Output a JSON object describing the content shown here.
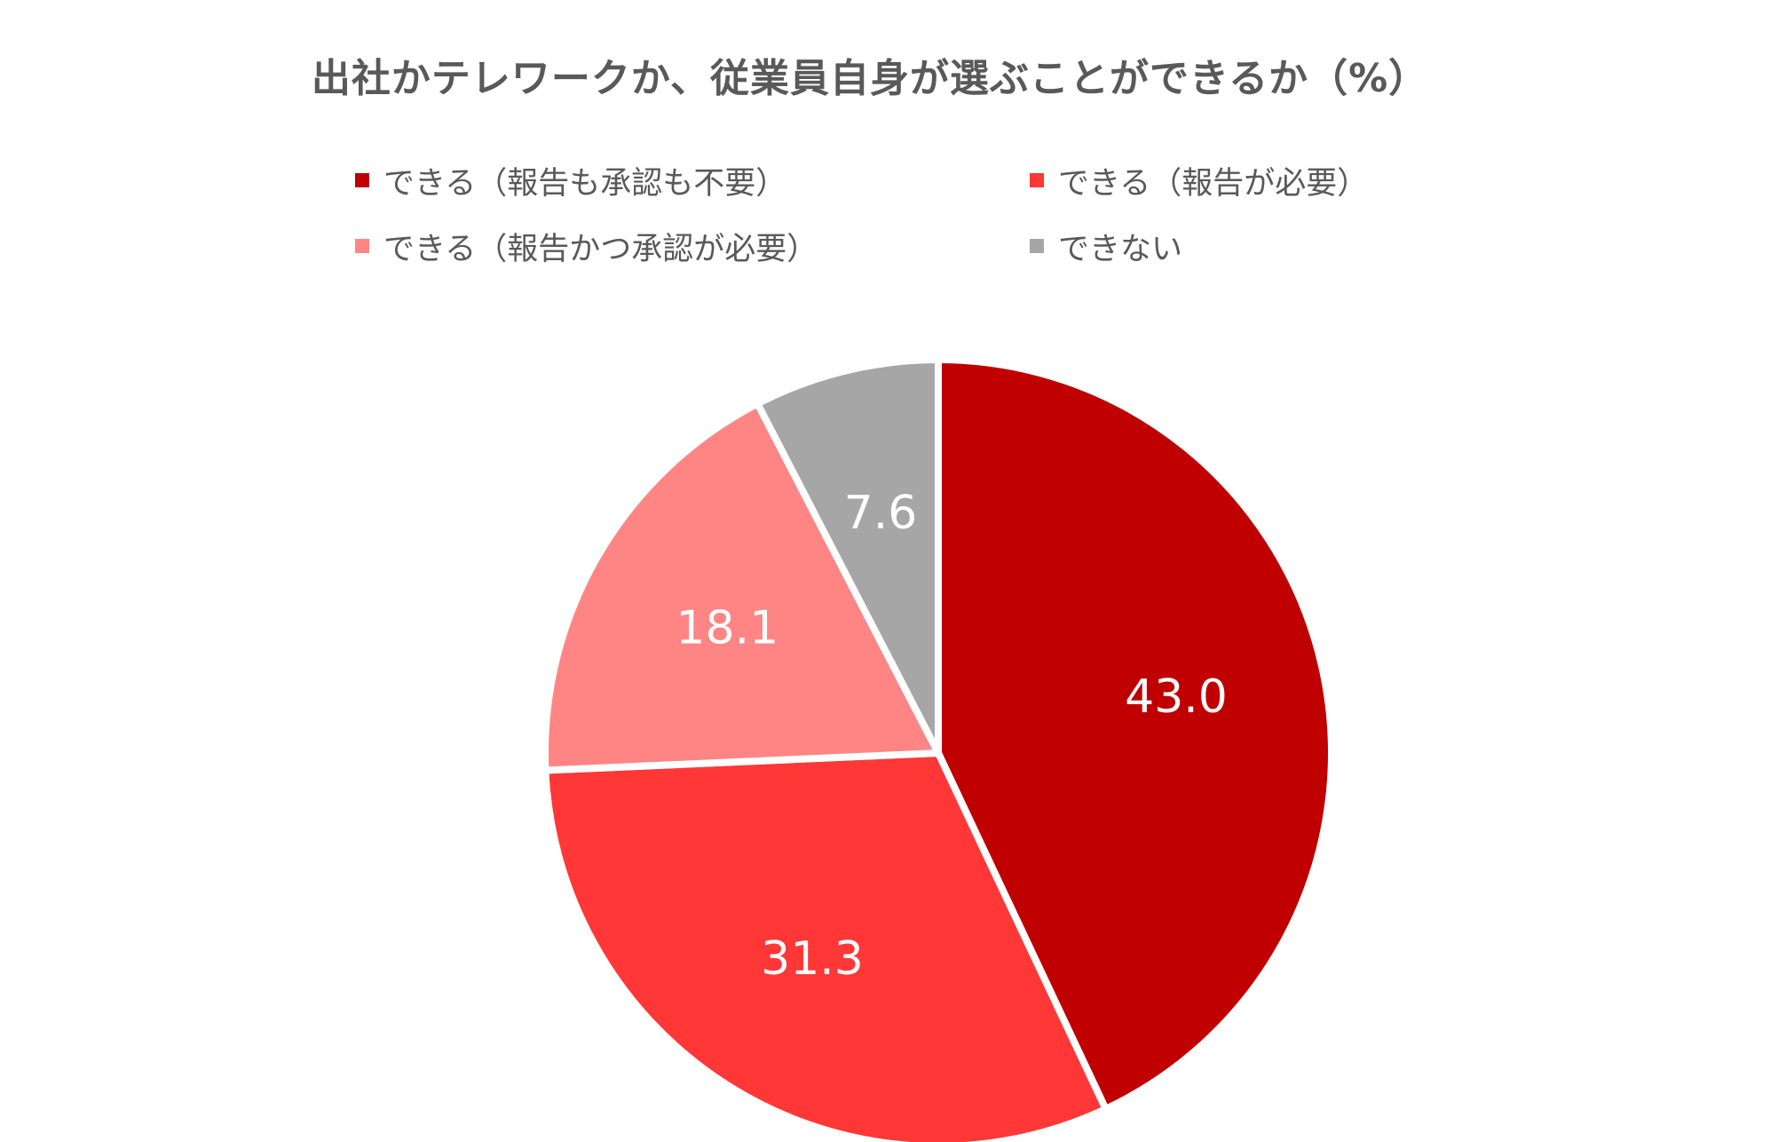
{
  "chart_data": {
    "type": "pie",
    "title": "出社かテレワークか、従業員自身が選ぶことができるか（%）",
    "start_angle_deg": 0,
    "direction": "clockwise",
    "legend_placement": "top",
    "slices": [
      {
        "label": "できる（報告も承認も不要）",
        "value": 43.0,
        "value_label": "43.0",
        "color": "#C00000"
      },
      {
        "label": "できる（報告が必要）",
        "value": 31.3,
        "value_label": "31.3",
        "color": "#FF3737"
      },
      {
        "label": "できる（報告かつ承認が必要）",
        "value": 18.1,
        "value_label": "18.1",
        "color": "#FF8585"
      },
      {
        "label": "できない",
        "value": 7.6,
        "value_label": "7.6",
        "color": "#A6A6A6"
      }
    ]
  }
}
